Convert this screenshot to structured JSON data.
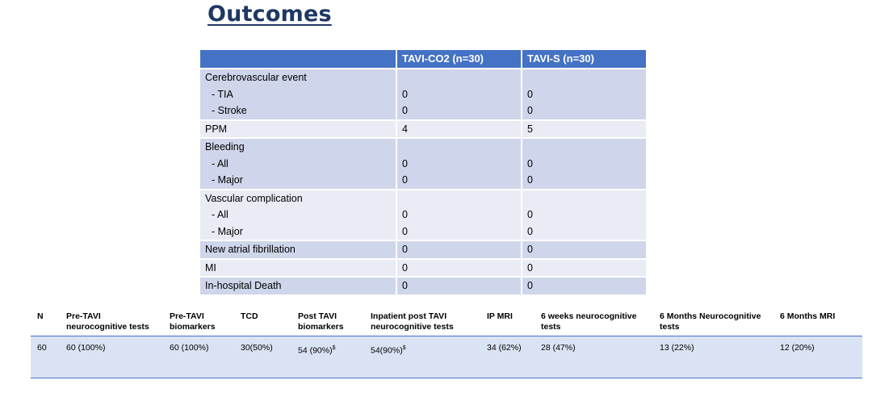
{
  "title": "Outcomes",
  "outcomes": {
    "headers": [
      "",
      "TAVI-CO2 (n=30)",
      "TAVI-S (n=30)"
    ],
    "rows": [
      {
        "label": "Cerebrovascular event",
        "subs": [
          "- TIA",
          "- Stroke"
        ],
        "co2": [
          "",
          "0",
          "0"
        ],
        "s": [
          "",
          "0",
          "0"
        ]
      },
      {
        "label": "PPM",
        "subs": [],
        "co2": [
          "4"
        ],
        "s": [
          "5"
        ]
      },
      {
        "label": "Bleeding",
        "subs": [
          "- All",
          "- Major"
        ],
        "co2": [
          "",
          "0",
          "0"
        ],
        "s": [
          "",
          "0",
          "0"
        ]
      },
      {
        "label": "Vascular complication",
        "subs": [
          "- All",
          "- Major"
        ],
        "co2": [
          "",
          "0",
          "0"
        ],
        "s": [
          "",
          "0",
          "0"
        ]
      },
      {
        "label": "New atrial fibrillation",
        "subs": [],
        "co2": [
          "0"
        ],
        "s": [
          "0"
        ]
      },
      {
        "label": "MI",
        "subs": [],
        "co2": [
          "0"
        ],
        "s": [
          "0"
        ]
      },
      {
        "label": "In-hospital Death",
        "subs": [],
        "co2": [
          "0"
        ],
        "s": [
          "0"
        ]
      }
    ]
  },
  "tests": {
    "headers": [
      "N",
      "Pre-TAVI neurocognitive tests",
      "Pre-TAVI biomarkers",
      "TCD",
      "Post TAVI biomarkers",
      "Inpatient post TAVI neurocognitive  tests",
      "IP MRI",
      "6 weeks neurocognitive tests",
      "6 Months Neurocognitive tests",
      "6 Months MRI"
    ],
    "values": [
      "60",
      "60 (100%)",
      "60 (100%)",
      "30(50%)",
      "54 (90%)",
      "54(90%)",
      "34 (62%)",
      "28 (47%)",
      "13 (22%)",
      "12 (20%)"
    ],
    "marks": [
      "",
      "",
      "",
      "",
      "$",
      "$",
      "",
      "",
      "",
      ""
    ]
  },
  "colors": {
    "title": "#1f3864",
    "header": "#4472c4",
    "row_dark": "#cfd5ea",
    "row_light": "#e9ebf5",
    "tests_row": "#dae3f3"
  }
}
